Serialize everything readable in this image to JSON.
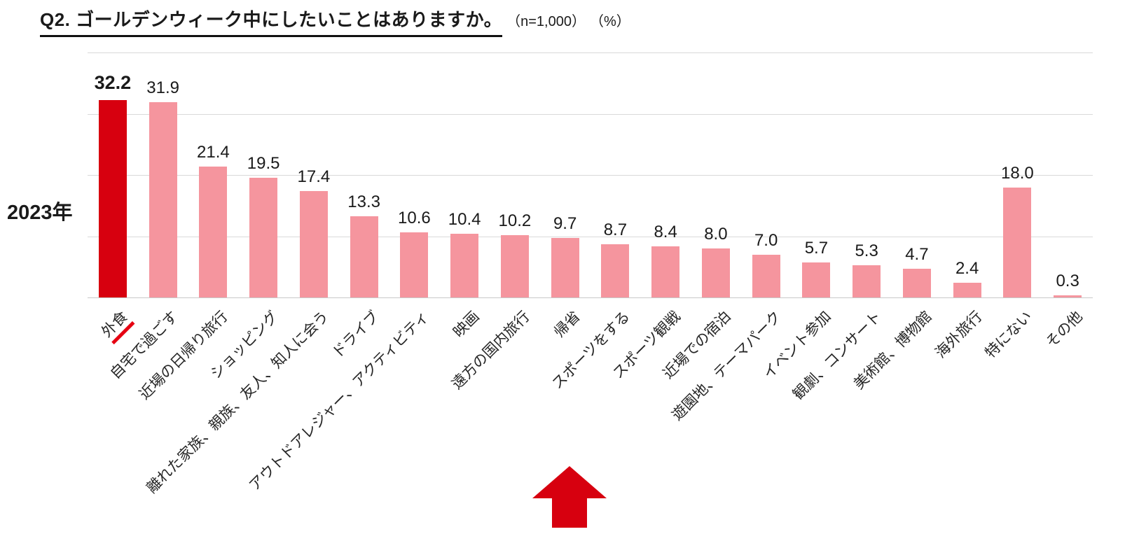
{
  "title": {
    "main": "Q2. ゴールデンウィーク中にしたいことはありますか。",
    "n": "（n=1,000）",
    "pct": "（%）"
  },
  "year_label": "2023年",
  "colors": {
    "highlight_bar": "#d7000f",
    "bar": "#f5959e",
    "grid": "#d9d9d9",
    "arrow": "#d7000f",
    "category_underline": "#e60012"
  },
  "chart_data": {
    "type": "bar",
    "title": "Q2. ゴールデンウィーク中にしたいことはありますか。（n=1,000）（%）",
    "series_label": "2023年",
    "categories": [
      "外食",
      "自宅で過ごす",
      "近場の日帰り旅行",
      "ショッピング",
      "離れた家族、親族、友人、知人に会う",
      "ドライブ",
      "アウトドアレジャー、アクティビティ",
      "映画",
      "遠方の国内旅行",
      "帰省",
      "スポーツをする",
      "スポーツ観戦",
      "近場での宿泊",
      "遊園地、テーマパーク",
      "イベント参加",
      "観劇、コンサート",
      "美術館、博物館",
      "海外旅行",
      "特にない",
      "その他"
    ],
    "values": [
      32.2,
      31.9,
      21.4,
      19.5,
      17.4,
      13.3,
      10.6,
      10.4,
      10.2,
      9.7,
      8.7,
      8.4,
      8.0,
      7.0,
      5.7,
      5.3,
      4.7,
      2.4,
      18.0,
      0.3
    ],
    "xlabel": "",
    "ylabel": "",
    "ylim": [
      0,
      40
    ],
    "gridlines": [
      0,
      10,
      20,
      30,
      40
    ],
    "grid": true,
    "legend": "none",
    "value_labels": true,
    "highlight_index": 0,
    "annotation": "red up-arrow below category axis near 帰省"
  }
}
